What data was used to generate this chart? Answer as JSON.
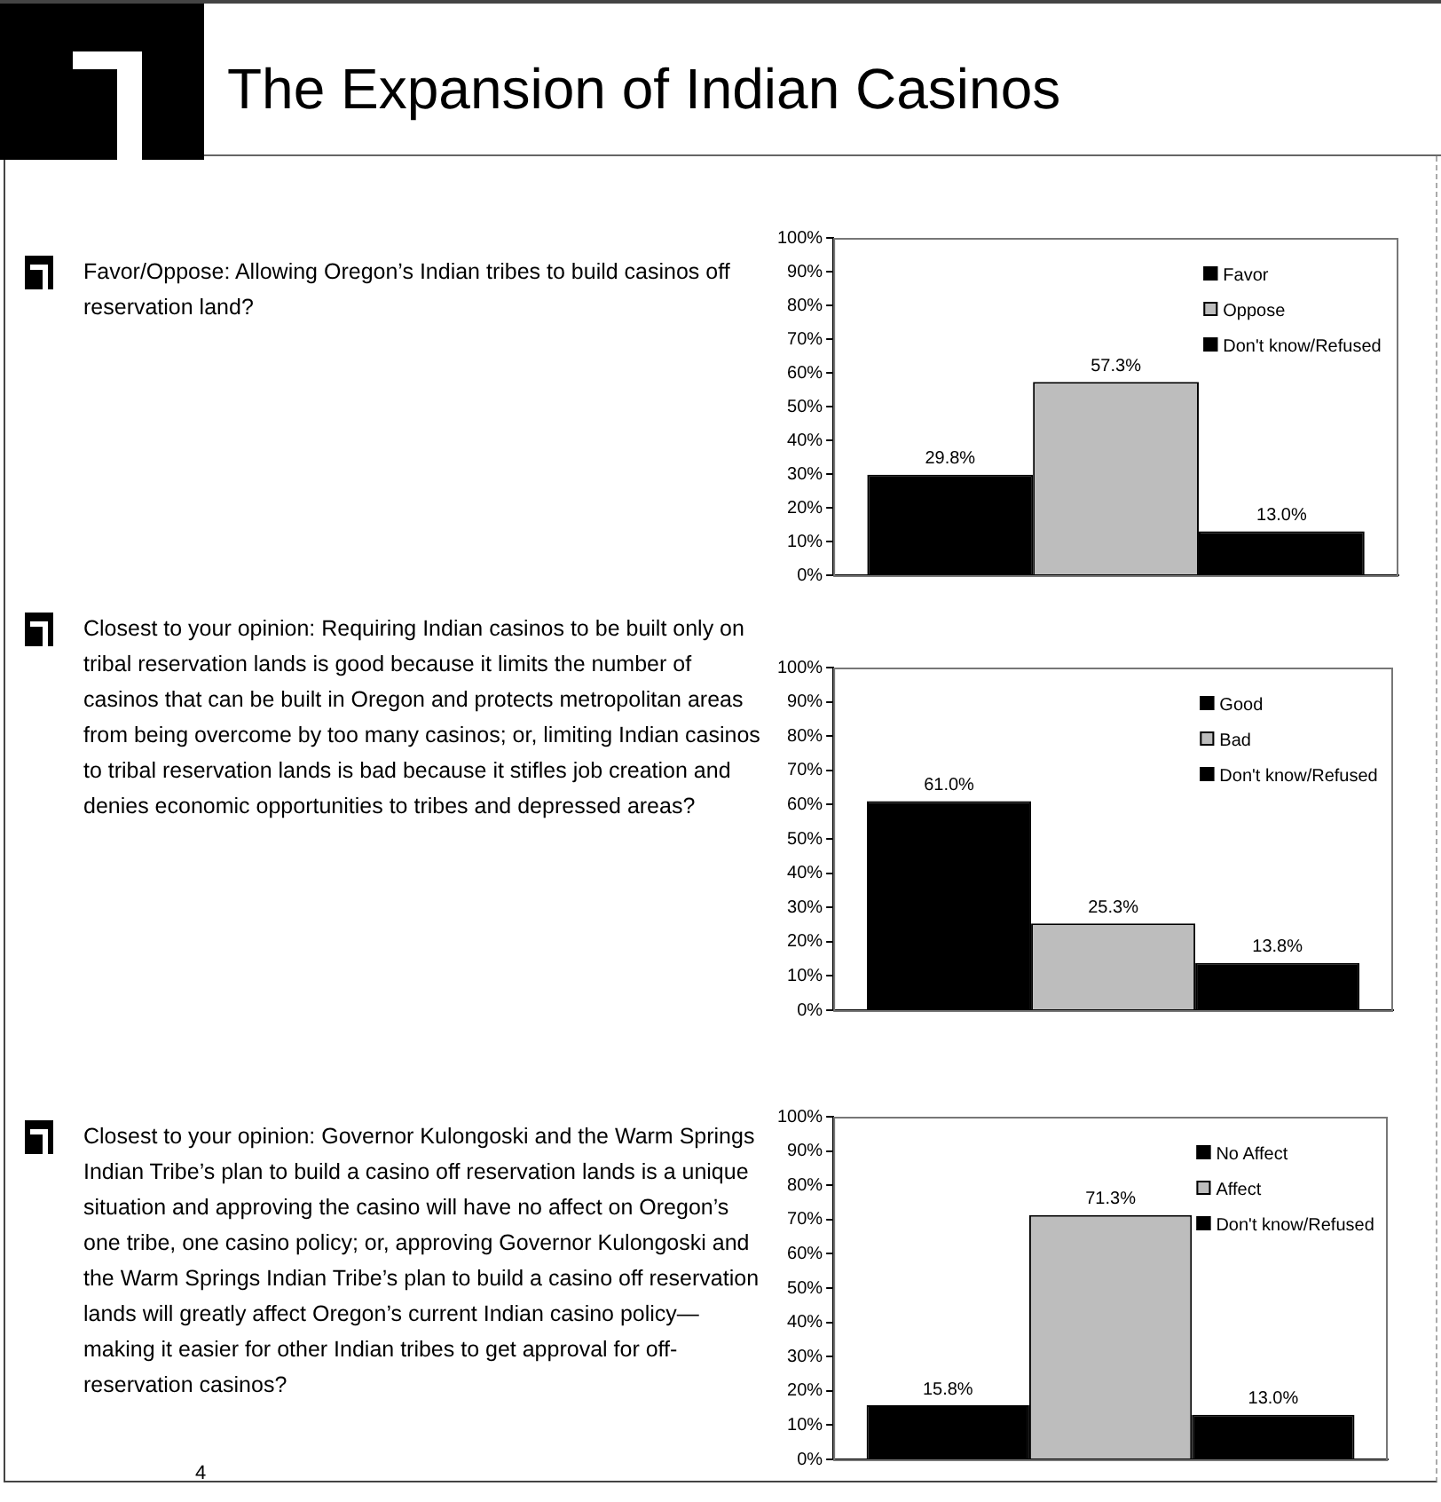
{
  "chart_data": [
    {
      "type": "bar",
      "title": "The Expansion of Indian Casinos",
      "subtitle": "Favor/Oppose: Allowing Oregon’s Indian tribes to build casinos off reservation land?",
      "categories": [
        null
      ],
      "series": [
        {
          "name": "Favor",
          "color": "#000000",
          "values": [
            29.8
          ],
          "value_labels": [
            "29.8%"
          ]
        },
        {
          "name": "Oppose",
          "color": "#bdbdbd",
          "values": [
            57.3
          ],
          "value_labels": [
            "57.3%"
          ]
        },
        {
          "name": "Don't know/Refused",
          "color": "#000000",
          "values": [
            13.0
          ],
          "value_labels": [
            "13.0%"
          ]
        }
      ],
      "ylim": [
        0,
        100
      ],
      "yticks": [
        {
          "value": 0,
          "label": "0%"
        },
        {
          "value": 10,
          "label": "10%"
        },
        {
          "value": 20,
          "label": "20%"
        },
        {
          "value": 30,
          "label": "30%"
        },
        {
          "value": 40,
          "label": "40%"
        },
        {
          "value": 50,
          "label": "50%"
        },
        {
          "value": 60,
          "label": "60%"
        },
        {
          "value": 70,
          "label": "70%"
        },
        {
          "value": 80,
          "label": "80%"
        },
        {
          "value": 90,
          "label": "90%"
        },
        {
          "value": 100,
          "label": "100%"
        }
      ],
      "grid": false,
      "legend": "top right"
    },
    {
      "type": "bar",
      "subtitle": "Closest to your opinion: Requiring Indian casinos to be built only on tribal reservation lands is good because it limits the number of casinos that can be built in Oregon and protects metropolitan areas from being overcome by too many casinos; or, limiting Indian casinos to tribal reservation lands is bad because it stifles job creation and denies economic opportunities to tribes and depressed areas?",
      "categories": [
        null
      ],
      "series": [
        {
          "name": "Good",
          "color": "#000000",
          "values": [
            61.0
          ],
          "value_labels": [
            "61.0%"
          ]
        },
        {
          "name": "Bad",
          "color": "#bdbdbd",
          "values": [
            25.3
          ],
          "value_labels": [
            "25.3%"
          ]
        },
        {
          "name": "Don't know/Refused",
          "color": "#000000",
          "values": [
            13.8
          ],
          "value_labels": [
            "13.8%"
          ]
        }
      ],
      "ylim": [
        0,
        100
      ],
      "yticks": [
        {
          "value": 0,
          "label": "0%"
        },
        {
          "value": 10,
          "label": "10%"
        },
        {
          "value": 20,
          "label": "20%"
        },
        {
          "value": 30,
          "label": "30%"
        },
        {
          "value": 40,
          "label": "40%"
        },
        {
          "value": 50,
          "label": "50%"
        },
        {
          "value": 60,
          "label": "60%"
        },
        {
          "value": 70,
          "label": "70%"
        },
        {
          "value": 80,
          "label": "80%"
        },
        {
          "value": 90,
          "label": "90%"
        },
        {
          "value": 100,
          "label": "100%"
        }
      ],
      "grid": false,
      "legend": "top right"
    },
    {
      "type": "bar",
      "subtitle": "Closest to your opinion: Governor Kulongoski and the Warm Springs Indian Tribe’s plan to build a casino off reservation lands is a unique situation and approving the casino will have no affect on Oregon’s one tribe, one casino policy; or, approving Governor Kulongoski and the Warm Springs Indian Tribe’s plan to build a casino off reservation lands will greatly affect Oregon’s current Indian casino policy—making it easier for other Indian tribes to get approval for off-reservation casinos?",
      "categories": [
        null
      ],
      "series": [
        {
          "name": "No Affect",
          "color": "#000000",
          "values": [
            15.8
          ],
          "value_labels": [
            "15.8%"
          ]
        },
        {
          "name": "Affect",
          "color": "#bdbdbd",
          "values": [
            71.3
          ],
          "value_labels": [
            "71.3%"
          ]
        },
        {
          "name": "Don't know/Refused",
          "color": "#000000",
          "values": [
            13.0
          ],
          "value_labels": [
            "13.0%"
          ]
        }
      ],
      "ylim": [
        0,
        100
      ],
      "yticks": [
        {
          "value": 0,
          "label": "0%"
        },
        {
          "value": 10,
          "label": "10%"
        },
        {
          "value": 20,
          "label": "20%"
        },
        {
          "value": 30,
          "label": "30%"
        },
        {
          "value": 40,
          "label": "40%"
        },
        {
          "value": 50,
          "label": "50%"
        },
        {
          "value": 60,
          "label": "60%"
        },
        {
          "value": 70,
          "label": "70%"
        },
        {
          "value": 80,
          "label": "80%"
        },
        {
          "value": 90,
          "label": "90%"
        },
        {
          "value": 100,
          "label": "100%"
        }
      ],
      "grid": false,
      "legend": "top right",
      "annotations": [
        "4"
      ]
    }
  ]
}
